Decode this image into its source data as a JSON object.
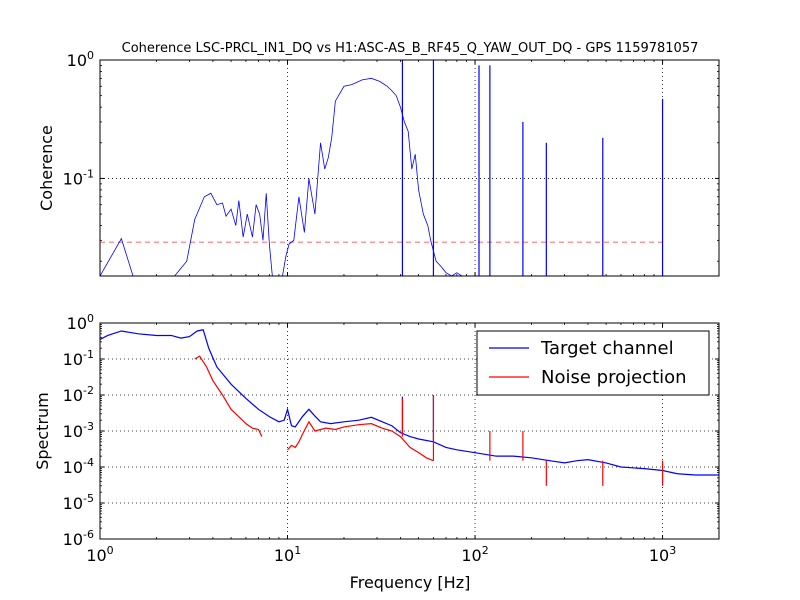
{
  "figure": {
    "title": "Coherence LSC-PRCL_IN1_DQ vs H1:ASC-AS_B_RF45_Q_YAW_OUT_DQ - GPS 1159781057",
    "xlabel": "Frequency [Hz]"
  },
  "colors": {
    "target": "#0000ff",
    "noise": "#ff0000",
    "threshold": "#ff0000",
    "grid": "#000000"
  },
  "chart_data": [
    {
      "type": "line",
      "panel": "coherence",
      "title": "Coherence LSC-PRCL_IN1_DQ vs H1:ASC-AS_B_RF45_Q_YAW_OUT_DQ - GPS 1159781057",
      "xlabel": "",
      "ylabel": "Coherence",
      "x_scale": "log",
      "y_scale": "log",
      "xlim": [
        1,
        2000
      ],
      "ylim": [
        0.015,
        1
      ],
      "grid": true,
      "x_tick_labels": [],
      "y_tick_labels": [
        {
          "value": 0.1,
          "base": "10",
          "exp": "-1"
        },
        {
          "value": 1,
          "base": "10",
          "exp": "0"
        }
      ],
      "threshold": 0.029,
      "series": [
        {
          "color": "#0000ff",
          "x": [
            1,
            1.3,
            1.5,
            2.5,
            2.9,
            3.2,
            3.6,
            3.9,
            4.2,
            4.5,
            4.7,
            5.0,
            5.3,
            5.5,
            5.8,
            6.1,
            6.5,
            6.8,
            7.1,
            7.4,
            7.7,
            8.0,
            8.3,
            8.8,
            9.4,
            9.8,
            10.2,
            10.8,
            11.5,
            12.3,
            13.0,
            14.0,
            15.0,
            15.8,
            16.5,
            17.2,
            18.0,
            20.0,
            22.0,
            25.0,
            28.0,
            31.0,
            34.0,
            36.0,
            38.0,
            40.0,
            42.0,
            44.0,
            46.0,
            48.0,
            50.0,
            53.0,
            56.0,
            58.0,
            62.0,
            66.0,
            70.0,
            75.0,
            80.0,
            85.0,
            90.0
          ],
          "y": [
            0.015,
            0.031,
            0.015,
            0.015,
            0.02,
            0.045,
            0.07,
            0.075,
            0.06,
            0.062,
            0.048,
            0.055,
            0.04,
            0.065,
            0.032,
            0.05,
            0.032,
            0.06,
            0.05,
            0.03,
            0.075,
            0.028,
            0.015,
            0.015,
            0.015,
            0.022,
            0.028,
            0.03,
            0.07,
            0.035,
            0.1,
            0.05,
            0.2,
            0.12,
            0.15,
            0.22,
            0.45,
            0.6,
            0.62,
            0.68,
            0.7,
            0.66,
            0.6,
            0.55,
            0.5,
            0.4,
            0.3,
            0.25,
            0.12,
            0.16,
            0.08,
            0.05,
            0.04,
            0.03,
            0.02,
            0.018,
            0.016,
            0.015,
            0.016,
            0.015,
            0.015
          ]
        }
      ],
      "peaks": [
        {
          "x": 41,
          "y": 1.0
        },
        {
          "x": 60,
          "y": 1.0
        },
        {
          "x": 105,
          "y": 0.9
        },
        {
          "x": 120,
          "y": 0.9
        },
        {
          "x": 180,
          "y": 0.3
        },
        {
          "x": 240,
          "y": 0.2
        },
        {
          "x": 480,
          "y": 0.22
        },
        {
          "x": 1000,
          "y": 0.47
        }
      ]
    },
    {
      "type": "line",
      "panel": "spectrum",
      "xlabel": "Frequency [Hz]",
      "ylabel": "Spectrum",
      "x_scale": "log",
      "y_scale": "log",
      "xlim": [
        1,
        2000
      ],
      "ylim": [
        1e-06,
        1
      ],
      "grid": true,
      "legend_position": "top-right",
      "x_tick_labels": [
        {
          "value": 1,
          "base": "10",
          "exp": "0"
        },
        {
          "value": 10,
          "base": "10",
          "exp": "1"
        },
        {
          "value": 100,
          "base": "10",
          "exp": "2"
        },
        {
          "value": 1000,
          "base": "10",
          "exp": "3"
        }
      ],
      "y_tick_labels": [
        {
          "value": 1e-06,
          "base": "10",
          "exp": "-6"
        },
        {
          "value": 1e-05,
          "base": "10",
          "exp": "-5"
        },
        {
          "value": 0.0001,
          "base": "10",
          "exp": "-4"
        },
        {
          "value": 0.001,
          "base": "10",
          "exp": "-3"
        },
        {
          "value": 0.01,
          "base": "10",
          "exp": "-2"
        },
        {
          "value": 0.1,
          "base": "10",
          "exp": "-1"
        },
        {
          "value": 1,
          "base": "10",
          "exp": "0"
        }
      ],
      "series": [
        {
          "name": "Target channel",
          "color": "#0000ff",
          "x": [
            1,
            1.1,
            1.3,
            1.6,
            2.0,
            2.4,
            2.7,
            3.0,
            3.3,
            3.55,
            3.8,
            4.2,
            5.0,
            6.0,
            7.0,
            8.0,
            9.0,
            9.6,
            10.0,
            10.5,
            11.0,
            12.0,
            13.0,
            14.0,
            15.0,
            17.0,
            20.0,
            24.0,
            28.0,
            32.0,
            36.0,
            40.0,
            45.0,
            50.0,
            60.0,
            70.0,
            80.0,
            100.0,
            130.0,
            160.0,
            200.0,
            250.0,
            300.0,
            350.0,
            400.0,
            500.0,
            600.0,
            800.0,
            1000.0,
            1200.0,
            1500.0,
            2000.0
          ],
          "y": [
            0.35,
            0.45,
            0.6,
            0.5,
            0.45,
            0.45,
            0.38,
            0.42,
            0.6,
            0.65,
            0.2,
            0.06,
            0.02,
            0.008,
            0.004,
            0.0025,
            0.0018,
            0.002,
            0.004,
            0.0014,
            0.0013,
            0.0025,
            0.004,
            0.0026,
            0.0018,
            0.0016,
            0.0018,
            0.002,
            0.0024,
            0.0018,
            0.0014,
            0.0009,
            0.0007,
            0.0006,
            0.0005,
            0.00035,
            0.0003,
            0.00025,
            0.0002,
            0.0002,
            0.00018,
            0.00015,
            0.00013,
            0.00015,
            0.00016,
            0.00013,
            0.0001,
            9e-05,
            8e-05,
            6.5e-05,
            6e-05,
            6e-05
          ]
        },
        {
          "name": "Noise projection",
          "color": "#ff0000",
          "segments": [
            {
              "x": [
                3.2,
                3.4,
                3.7,
                4.0,
                4.5,
                5.0,
                5.5,
                6.0,
                6.5,
                7.0,
                7.3
              ],
              "y": [
                0.1,
                0.12,
                0.06,
                0.025,
                0.01,
                0.004,
                0.0025,
                0.0016,
                0.0012,
                0.0011,
                0.0007
              ]
            },
            {
              "x": [
                10.0,
                10.5,
                11.0,
                11.5,
                12.0,
                13.0,
                14.0,
                16.0,
                18.0,
                20.0,
                24.0,
                28.0,
                32.0,
                36.0,
                40.0,
                45.0,
                50.0,
                55.0,
                60.0
              ],
              "y": [
                0.0003,
                0.0004,
                0.00035,
                0.0005,
                0.0008,
                0.0018,
                0.001,
                0.0012,
                0.0011,
                0.0013,
                0.0015,
                0.0016,
                0.0012,
                0.001,
                0.0007,
                0.00035,
                0.00025,
                0.00018,
                0.00015
              ]
            }
          ]
        }
      ],
      "peaks": [
        {
          "x": 41,
          "series": "Target channel",
          "y": 0.009
        },
        {
          "x": 41,
          "series": "Noise projection",
          "y": 0.008
        },
        {
          "x": 60,
          "series": "Target channel",
          "y": 0.01
        },
        {
          "x": 60,
          "series": "Noise projection",
          "y": 0.01
        },
        {
          "x": 120,
          "series": "Noise projection",
          "y": 0.001
        },
        {
          "x": 180,
          "series": "Noise projection",
          "y": 0.001
        },
        {
          "x": 240,
          "series": "Noise projection",
          "y": 3e-05
        },
        {
          "x": 480,
          "series": "Noise projection",
          "y": 3e-05
        },
        {
          "x": 1000,
          "series": "Noise projection",
          "y": 3e-05
        }
      ]
    }
  ]
}
